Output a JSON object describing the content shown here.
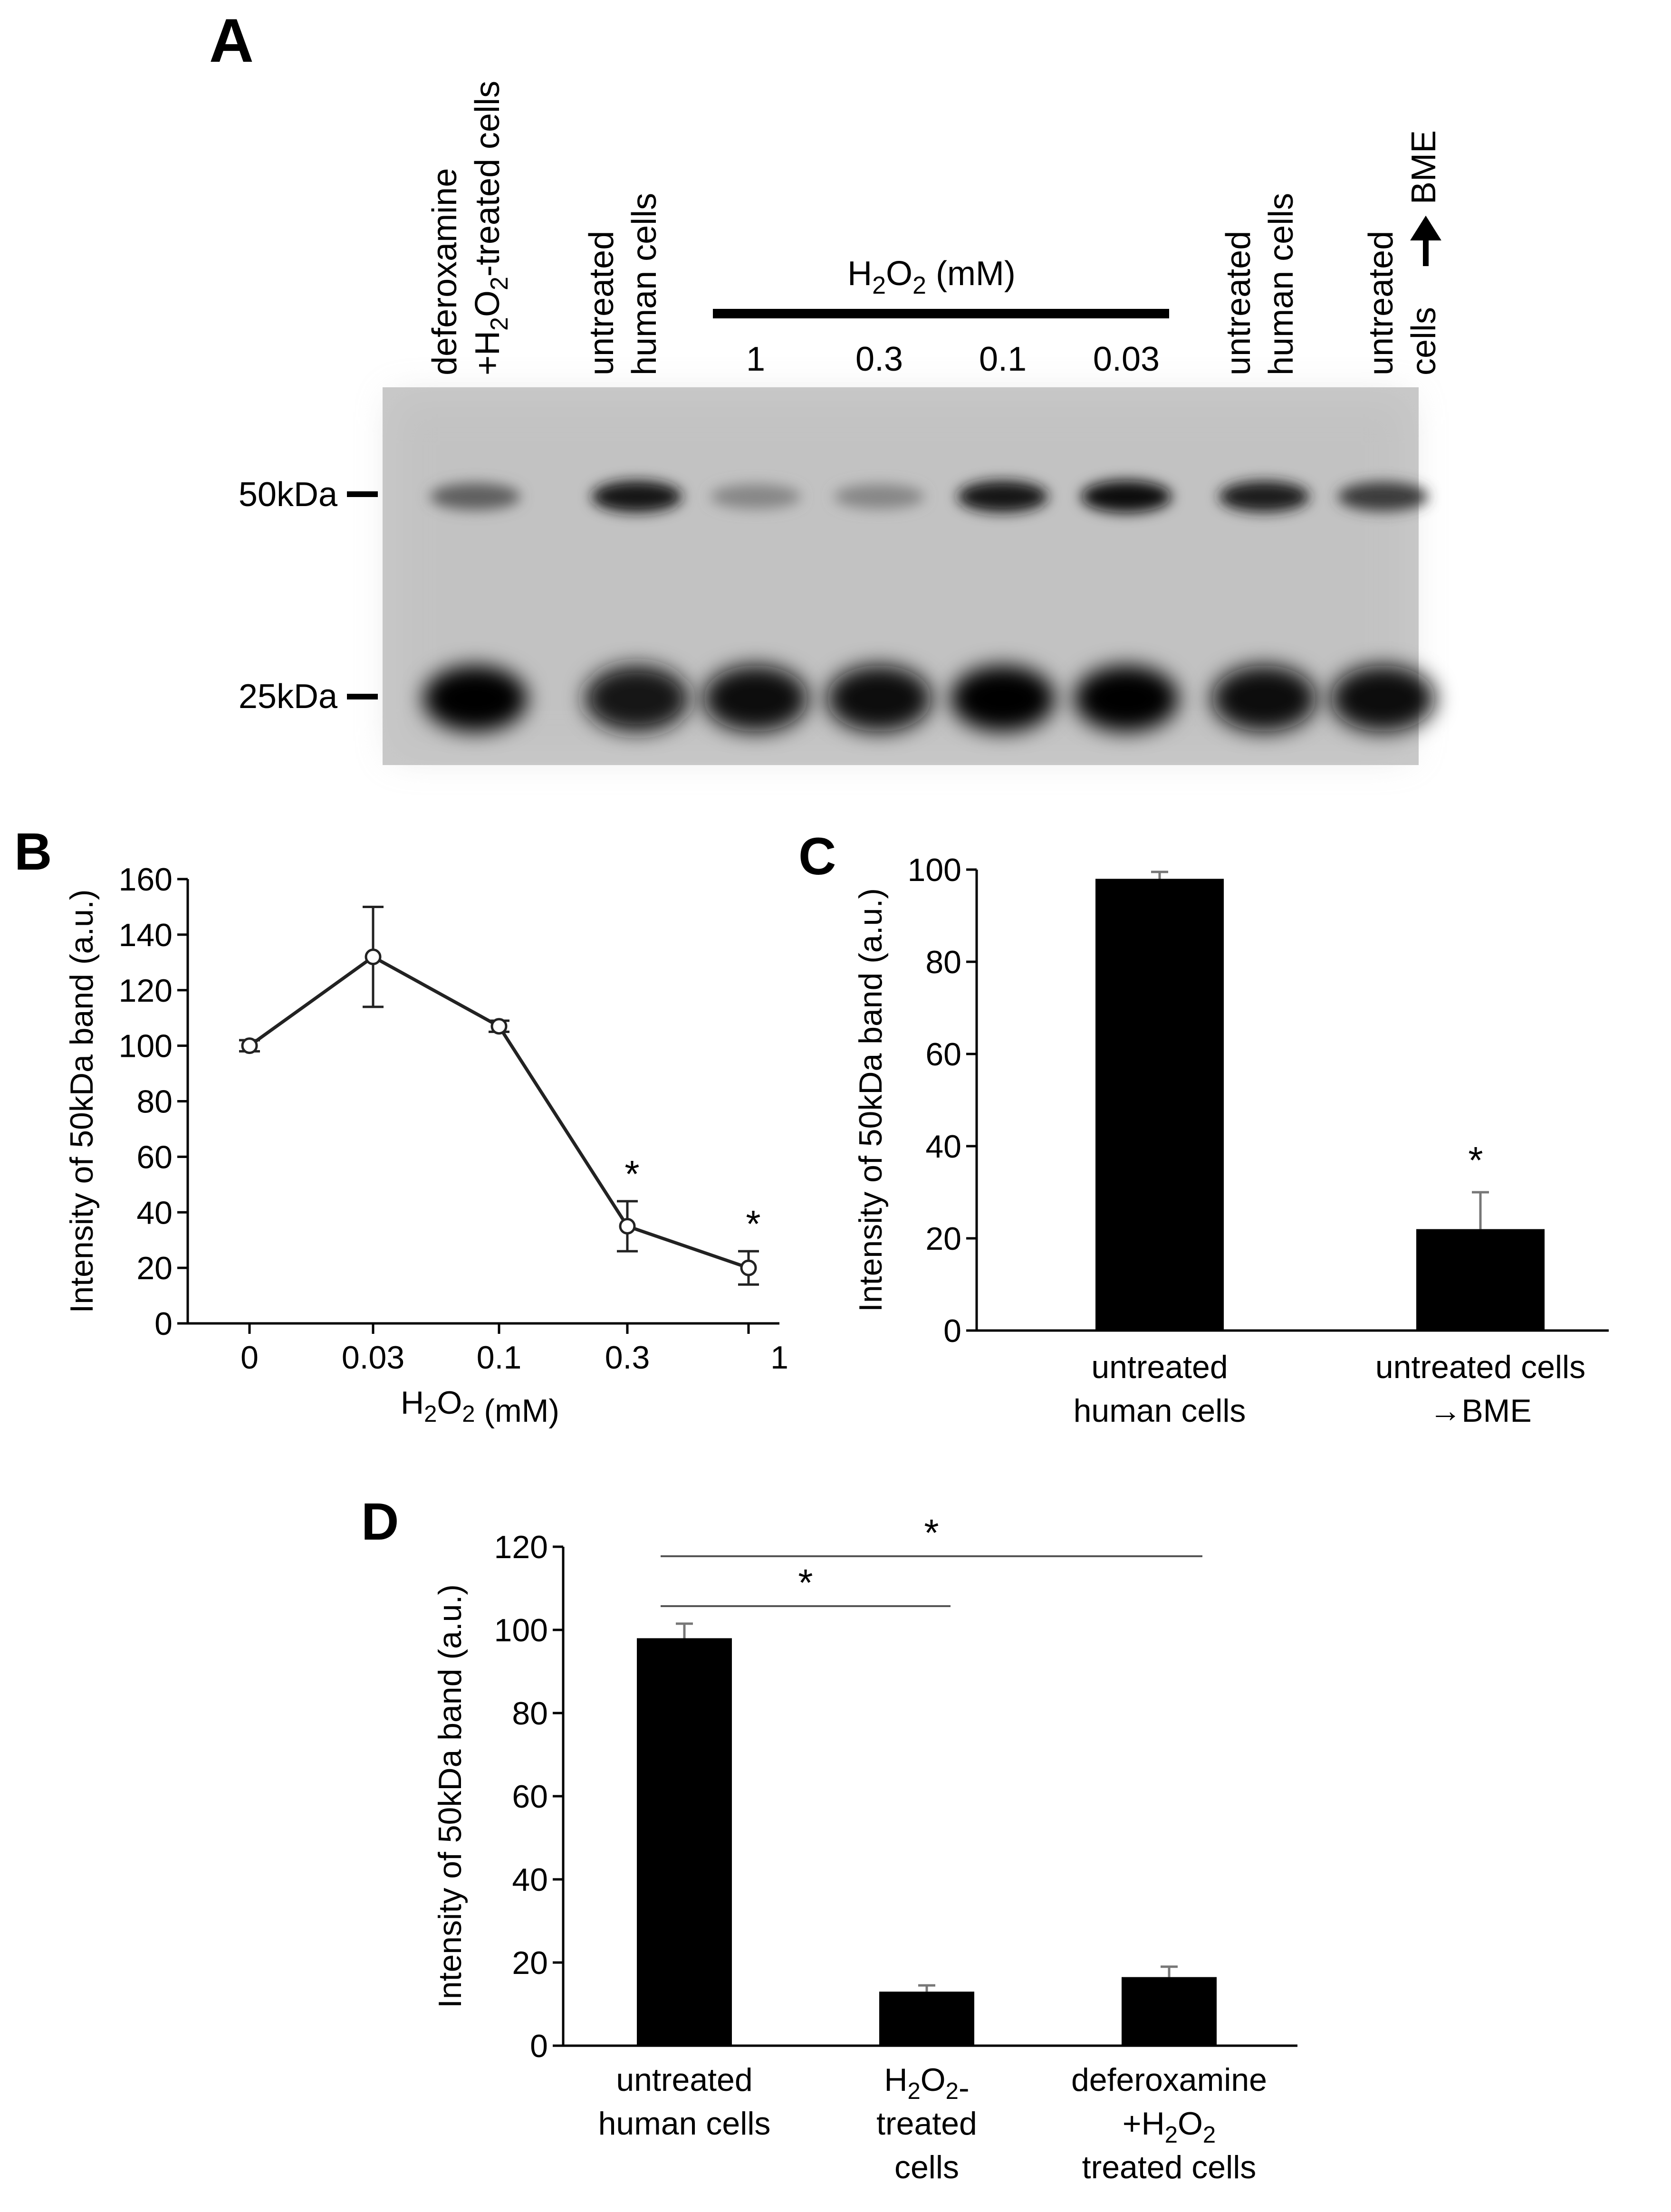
{
  "panels": {
    "A": {
      "label": "A",
      "h2o2_header": "H2O2 (mM)",
      "lane_labels": [
        [
          "deferoxamine",
          "+H2O2-treated cells"
        ],
        [
          "untreated",
          "human cells"
        ],
        [
          "1"
        ],
        [
          "0.3"
        ],
        [
          "0.1"
        ],
        [
          "0.03"
        ],
        [
          "untreated",
          "human cells"
        ],
        [
          "untreated",
          "cells → BME"
        ]
      ],
      "markers": [
        "50kDa",
        "25kDa"
      ],
      "band_50kDa_darkness": [
        0.55,
        0.95,
        0.35,
        0.35,
        0.95,
        1.0,
        0.9,
        0.75
      ],
      "band_25kDa_darkness": [
        1.0,
        0.9,
        0.95,
        0.95,
        1.0,
        1.0,
        0.95,
        0.95
      ]
    },
    "B": {
      "label": "B"
    },
    "C": {
      "label": "C"
    },
    "D": {
      "label": "D"
    }
  },
  "chart_data": [
    {
      "panel": "B",
      "type": "line",
      "x": [
        "0",
        "0.03",
        "0.1",
        "0.3",
        "1"
      ],
      "y": [
        100,
        132,
        107,
        35,
        20
      ],
      "error": [
        2,
        18,
        2,
        9,
        6
      ],
      "significance": [
        "",
        "",
        "",
        "*",
        "*"
      ],
      "xlabel": "H2O2 (mM)",
      "ylabel": "Intensity of 50kDa band (a.u.)",
      "ylim": [
        0,
        160
      ],
      "yticks": [
        0,
        20,
        40,
        60,
        80,
        100,
        120,
        140,
        160
      ],
      "grid": false,
      "color": "#222222"
    },
    {
      "panel": "C",
      "type": "bar",
      "categories": [
        [
          "untreated",
          "human cells"
        ],
        [
          "untreated cells",
          "→BME"
        ]
      ],
      "values": [
        98,
        22
      ],
      "error": [
        1.5,
        8
      ],
      "significance": [
        "",
        "*"
      ],
      "xlabel": "",
      "ylabel": "Intensity of 50kDa band (a.u.)",
      "ylim": [
        0,
        100
      ],
      "yticks": [
        0,
        20,
        40,
        60,
        80,
        100
      ],
      "grid": false,
      "color": "#000000"
    },
    {
      "panel": "D",
      "type": "bar",
      "categories": [
        [
          "untreated",
          "human cells"
        ],
        [
          "H2O2-",
          "treated",
          "cells"
        ],
        [
          "deferoxamine",
          "+H2O2",
          "treated cells"
        ]
      ],
      "values": [
        98,
        13,
        16.5
      ],
      "error": [
        3.5,
        1.5,
        2.5
      ],
      "comparisons": [
        {
          "from": 0,
          "to": 1,
          "label": "*"
        },
        {
          "from": 0,
          "to": 2,
          "label": "*"
        }
      ],
      "xlabel": "",
      "ylabel": "Intensity of 50kDa band (a.u.)",
      "ylim": [
        0,
        120
      ],
      "yticks": [
        0,
        20,
        40,
        60,
        80,
        100,
        120
      ],
      "grid": false,
      "color": "#000000"
    }
  ]
}
